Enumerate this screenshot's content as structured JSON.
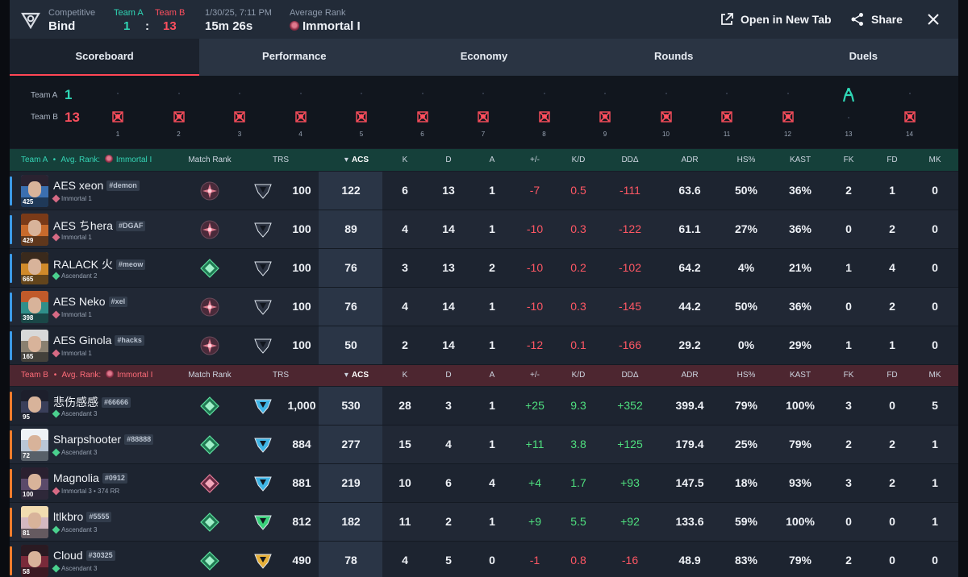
{
  "header": {
    "mode_label": "Competitive",
    "map": "Bind",
    "teamA_label": "Team A",
    "teamB_label": "Team B",
    "teamA_score": "1",
    "separator": ":",
    "teamB_score": "13",
    "date": "1/30/25, 7:11 PM",
    "duration": "15m 26s",
    "avg_rank_label": "Average Rank",
    "avg_rank": "Immortal I",
    "open_new_tab": "Open in New Tab",
    "share": "Share"
  },
  "tabs": [
    "Scoreboard",
    "Performance",
    "Economy",
    "Rounds",
    "Duels"
  ],
  "timeline": {
    "teamA_label": "Team A",
    "teamA_score": "1",
    "teamB_label": "Team B",
    "teamB_score": "13",
    "rounds": [
      "1",
      "2",
      "3",
      "4",
      "5",
      "6",
      "7",
      "8",
      "9",
      "10",
      "11",
      "12",
      "13",
      "14"
    ],
    "winners": [
      "B",
      "B",
      "B",
      "B",
      "B",
      "B",
      "B",
      "B",
      "B",
      "B",
      "B",
      "B",
      "A",
      "B"
    ]
  },
  "columns": {
    "match_rank": "Match Rank",
    "trs": "TRS",
    "acs": "ACS",
    "k": "K",
    "d": "D",
    "a": "A",
    "pm": "+/-",
    "kd": "K/D",
    "dda": "DDΔ",
    "adr": "ADR",
    "hs": "HS%",
    "kast": "KAST",
    "fk": "FK",
    "fd": "FD",
    "mk": "MK"
  },
  "teamA": {
    "label": "Team A",
    "bullet": "•",
    "avg_rank_label": "Avg. Rank:",
    "avg_rank": "Immortal I",
    "players": [
      {
        "level": "425",
        "name": "AES xeon",
        "tag": "#demon",
        "rank": "Immortal 1",
        "trs": "100",
        "acs": "122",
        "k": "6",
        "d": "13",
        "a": "1",
        "pm": "-7",
        "kd": "0.5",
        "dda": "-111",
        "adr": "63.6",
        "hs": "50%",
        "kast": "36%",
        "fk": "2",
        "fd": "1",
        "mk": "0"
      },
      {
        "level": "429",
        "name": "AES ちhera",
        "tag": "#DGAF",
        "rank": "Immortal 1",
        "trs": "100",
        "acs": "89",
        "k": "4",
        "d": "14",
        "a": "1",
        "pm": "-10",
        "kd": "0.3",
        "dda": "-122",
        "adr": "61.1",
        "hs": "27%",
        "kast": "36%",
        "fk": "0",
        "fd": "2",
        "mk": "0"
      },
      {
        "level": "665",
        "name": "RALACK 火",
        "tag": "#meow",
        "rank": "Ascendant 2",
        "trs": "100",
        "acs": "76",
        "k": "3",
        "d": "13",
        "a": "2",
        "pm": "-10",
        "kd": "0.2",
        "dda": "-102",
        "adr": "64.2",
        "hs": "4%",
        "kast": "21%",
        "fk": "1",
        "fd": "4",
        "mk": "0"
      },
      {
        "level": "398",
        "name": "AES Neko",
        "tag": "#xel",
        "rank": "Immortal 1",
        "trs": "100",
        "acs": "76",
        "k": "4",
        "d": "14",
        "a": "1",
        "pm": "-10",
        "kd": "0.3",
        "dda": "-145",
        "adr": "44.2",
        "hs": "50%",
        "kast": "36%",
        "fk": "0",
        "fd": "2",
        "mk": "0"
      },
      {
        "level": "165",
        "name": "AES Ginola",
        "tag": "#hacks",
        "rank": "Immortal 1",
        "trs": "100",
        "acs": "50",
        "k": "2",
        "d": "14",
        "a": "1",
        "pm": "-12",
        "kd": "0.1",
        "dda": "-166",
        "adr": "29.2",
        "hs": "0%",
        "kast": "29%",
        "fk": "1",
        "fd": "1",
        "mk": "0"
      }
    ]
  },
  "teamB": {
    "label": "Team B",
    "bullet": "•",
    "avg_rank_label": "Avg. Rank:",
    "avg_rank": "Immortal I",
    "players": [
      {
        "level": "95",
        "name": "悲伤感感",
        "tag": "#66666",
        "rank": "Ascendant 3",
        "trs": "1,000",
        "acs": "530",
        "k": "28",
        "d": "3",
        "a": "1",
        "pm": "+25",
        "kd": "9.3",
        "dda": "+352",
        "adr": "399.4",
        "hs": "79%",
        "kast": "100%",
        "fk": "3",
        "fd": "0",
        "mk": "5"
      },
      {
        "level": "72",
        "name": "Sharpshooter",
        "tag": "#88888",
        "rank": "Ascendant 3",
        "trs": "884",
        "acs": "277",
        "k": "15",
        "d": "4",
        "a": "1",
        "pm": "+11",
        "kd": "3.8",
        "dda": "+125",
        "adr": "179.4",
        "hs": "25%",
        "kast": "79%",
        "fk": "2",
        "fd": "2",
        "mk": "1"
      },
      {
        "level": "100",
        "name": "Magnolia",
        "tag": "#0912",
        "rank": "Immortal 3 • 374 RR",
        "trs": "881",
        "acs": "219",
        "k": "10",
        "d": "6",
        "a": "4",
        "pm": "+4",
        "kd": "1.7",
        "dda": "+93",
        "adr": "147.5",
        "hs": "18%",
        "kast": "93%",
        "fk": "3",
        "fd": "2",
        "mk": "1"
      },
      {
        "level": "81",
        "name": "ltlkbro",
        "tag": "#5555",
        "rank": "Ascendant 3",
        "trs": "812",
        "acs": "182",
        "k": "11",
        "d": "2",
        "a": "1",
        "pm": "+9",
        "kd": "5.5",
        "dda": "+92",
        "adr": "133.6",
        "hs": "59%",
        "kast": "100%",
        "fk": "0",
        "fd": "0",
        "mk": "1"
      },
      {
        "level": "58",
        "name": "Cloud",
        "tag": "#30325",
        "rank": "Ascendant 3",
        "trs": "490",
        "acs": "78",
        "k": "4",
        "d": "5",
        "a": "0",
        "pm": "-1",
        "kd": "0.8",
        "dda": "-16",
        "adr": "48.9",
        "hs": "83%",
        "kast": "79%",
        "fk": "2",
        "fd": "0",
        "mk": "0"
      }
    ]
  },
  "colors": {
    "teamA": "#2fd6b5",
    "teamB": "#ff4f5e",
    "positive": "#4fe07f",
    "negative": "#ff5764",
    "accent": "#ff4655"
  }
}
